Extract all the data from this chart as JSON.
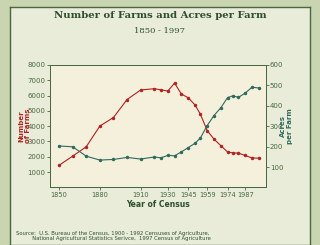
{
  "title": "Number of Farms and Acres per Farm",
  "subtitle": "1850 - 1997",
  "xlabel": "Year of Census",
  "ylabel_left": "Number\nof Farms",
  "ylabel_right": "Acres\nper Farm",
  "source_text": "Source:  U.S. Bureau of the Census, 1900 - 1992 Censuses of Agriculture,\n          National Agricultural Statistics Serivce,  1997 Census of Agriculture",
  "years": [
    1850,
    1860,
    1870,
    1880,
    1890,
    1900,
    1910,
    1920,
    1925,
    1930,
    1935,
    1940,
    1945,
    1950,
    1954,
    1959,
    1964,
    1969,
    1974,
    1978,
    1982,
    1987,
    1992,
    1997
  ],
  "num_farms": [
    1449,
    2044,
    2660,
    4009,
    4565,
    5740,
    6362,
    6448,
    6372,
    6295,
    6812,
    6097,
    5859,
    5388,
    4782,
    3711,
    3157,
    2730,
    2314,
    2257,
    2241,
    2087,
    1925,
    1912
  ],
  "acres_per_farm": [
    203,
    199,
    153,
    134,
    137,
    147,
    139,
    149,
    145,
    157,
    155,
    174,
    195,
    216,
    242,
    303,
    352,
    390,
    440,
    449,
    441,
    462,
    491,
    487
  ],
  "farms_color": "#b22222",
  "acres_color": "#2e6b5e",
  "plot_bg": "#f5f0dc",
  "outer_bg": "#c8d5b0",
  "inner_bg": "#e8ecd8",
  "title_color": "#2e4e2e",
  "ylabel_left_color": "#b22222",
  "ylabel_right_color": "#2e6b5e",
  "axis_color": "#4a6741",
  "tick_color": "#4a6741",
  "ylim_left": [
    0,
    8000
  ],
  "ylim_right": [
    0,
    600
  ],
  "yticks_left": [
    1000,
    2000,
    3000,
    4000,
    5000,
    6000,
    7000,
    8000
  ],
  "yticks_right": [
    100,
    200,
    300,
    400,
    500,
    600
  ],
  "xticks": [
    1850,
    1880,
    1910,
    1930,
    1945,
    1959,
    1974,
    1987
  ],
  "xlim": [
    1843,
    2002
  ]
}
